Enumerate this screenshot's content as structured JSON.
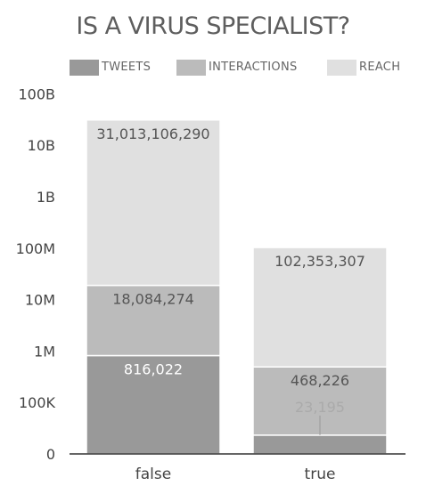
{
  "chart_data": {
    "type": "bar",
    "stacked": true,
    "title": "IS A VIRUS SPECIALIST?",
    "xlabel": "",
    "ylabel": "",
    "yscale": "log",
    "yticks": [
      "0",
      "100K",
      "1M",
      "10M",
      "100M",
      "1B",
      "10B",
      "100B"
    ],
    "categories": [
      "false",
      "true"
    ],
    "series": [
      {
        "name": "TWEETS",
        "values": [
          816022,
          23195
        ],
        "labels": [
          "816,022",
          "23,195"
        ],
        "color": "#999999"
      },
      {
        "name": "INTERACTIONS",
        "values": [
          18084274,
          468226
        ],
        "labels": [
          "18,084,274",
          "468,226"
        ],
        "color": "#bbbbbb"
      },
      {
        "name": "REACH",
        "values": [
          31013106290,
          102353307
        ],
        "labels": [
          "31,013,106,290",
          "102,353,307"
        ],
        "color": "#e0e0e0"
      }
    ],
    "legend_position": "top"
  },
  "colors": {
    "title": "#5e5e5e",
    "tick_text": "#444444",
    "label_dark": "#555555",
    "label_light": "#ffffff",
    "label_faint": "#aaaaaa"
  }
}
